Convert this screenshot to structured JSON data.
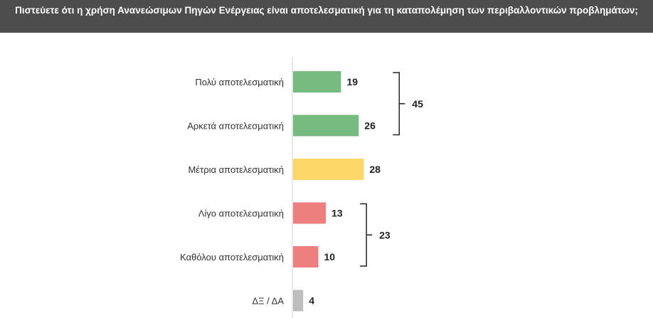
{
  "chart_data": {
    "type": "bar",
    "orientation": "horizontal",
    "title": "Πιστεύετε ότι η χρήση Ανανεώσιμων Πηγών Ενέργειας είναι αποτελεσματική για τη καταπολέμηση των περιβαλλοντικών προβλημάτων;",
    "categories": [
      "Πολύ αποτελεσματική",
      "Αρκετά αποτελεσματική",
      "Μέτρια αποτελεσματική",
      "Λίγο αποτελεσματική",
      "Καθόλου αποτελεσματική",
      "ΔΞ / ΔΑ"
    ],
    "values": [
      19,
      26,
      28,
      13,
      10,
      4
    ],
    "colors": [
      "#76bb7f",
      "#76bb7f",
      "#fdd868",
      "#ef7f7f",
      "#ef7f7f",
      "#bdbdbd"
    ],
    "xlim": [
      0,
      30
    ],
    "grid": false,
    "groups": [
      {
        "label": "45",
        "from": 0,
        "to": 1
      },
      {
        "label": "23",
        "from": 3,
        "to": 4
      }
    ]
  }
}
